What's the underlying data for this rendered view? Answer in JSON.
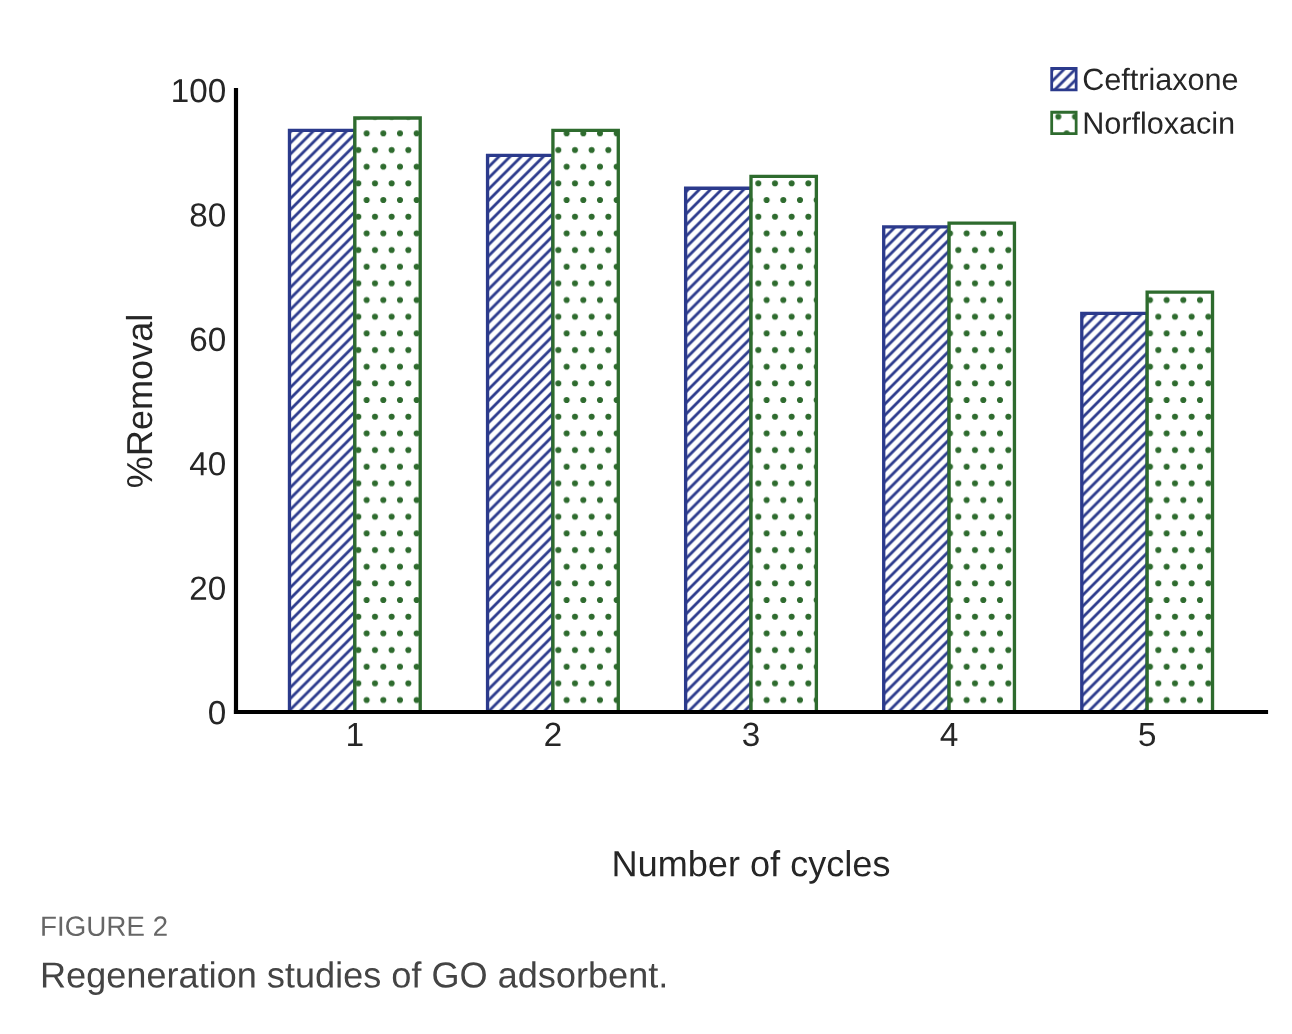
{
  "chart_data": {
    "type": "bar",
    "xlabel": "Number of cycles",
    "ylabel": "%Removal",
    "categories": [
      "1",
      "2",
      "3",
      "4",
      "5"
    ],
    "series": [
      {
        "name": "Ceftriaxone",
        "color": "#2b3a8c",
        "values": [
          93.5,
          89.5,
          84.2,
          78.0,
          64.1
        ]
      },
      {
        "name": "Norfloxacin",
        "color": "#2e6b2e",
        "values": [
          95.5,
          93.5,
          86.1,
          78.6,
          67.5
        ]
      }
    ],
    "ylim": [
      0,
      100
    ],
    "yticks": [
      0,
      20,
      40,
      60,
      80,
      100
    ],
    "grid": false,
    "legend": "top right",
    "annotations": [
      "FIGURE 2",
      "Regeneration studies of GO adsorbent."
    ]
  }
}
